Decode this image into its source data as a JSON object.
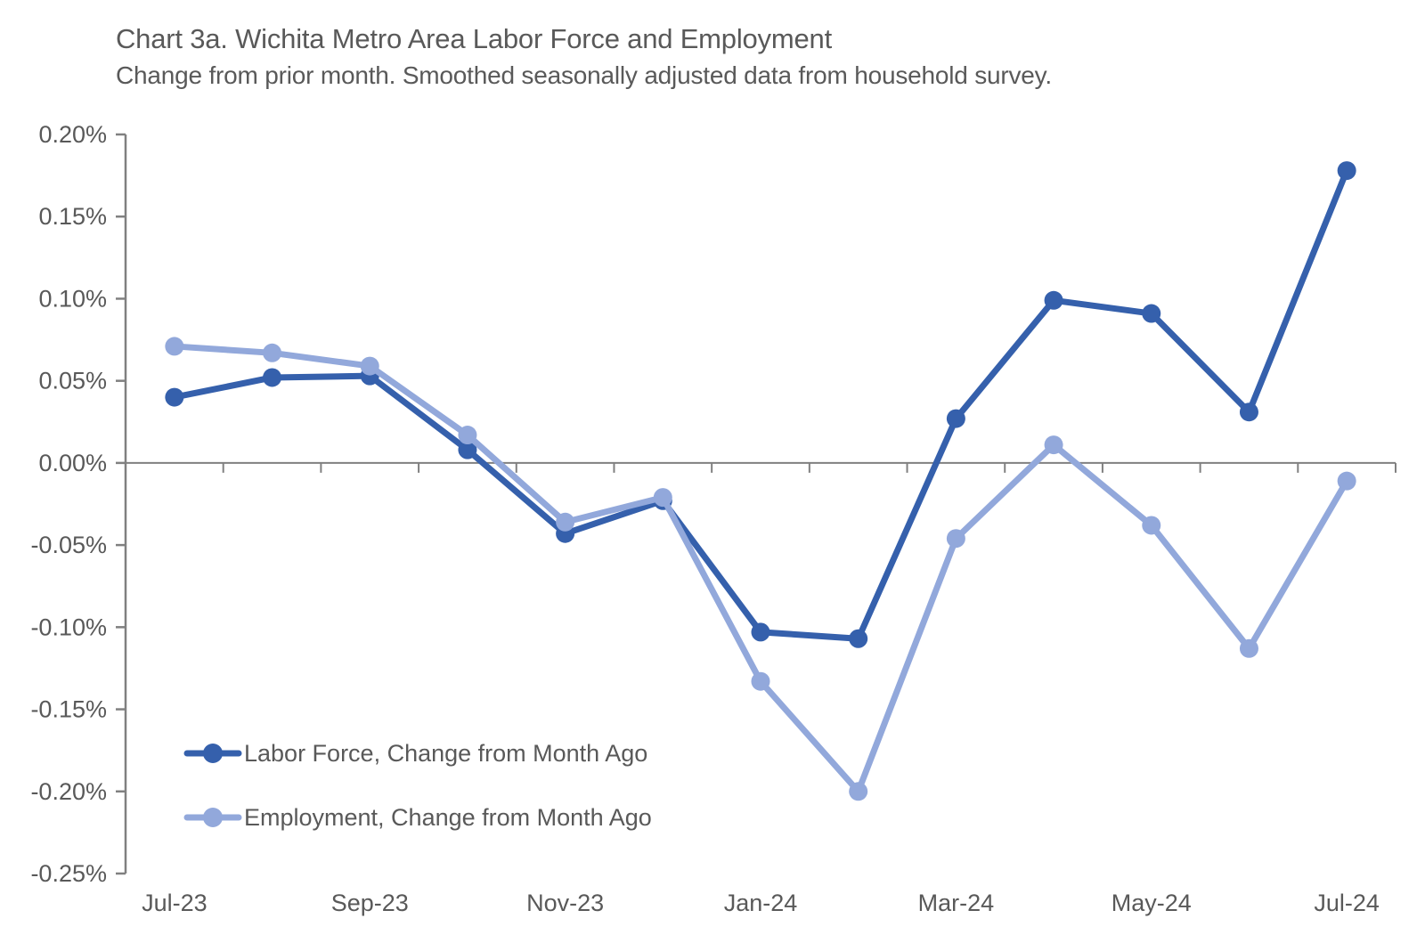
{
  "title": "Chart 3a. Wichita Metro Area Labor Force and Employment",
  "subtitle": "Change from prior month. Smoothed seasonally adjusted data from household survey.",
  "colors": {
    "labor_force": "#3560AC",
    "employment": "#92A8DB",
    "text": "#595959",
    "axis": "#808080"
  },
  "chart_data": {
    "type": "line",
    "unit": "percent",
    "x": [
      "Jul-23",
      "Aug-23",
      "Sep-23",
      "Oct-23",
      "Nov-23",
      "Dec-23",
      "Jan-24",
      "Feb-24",
      "Mar-24",
      "Apr-24",
      "May-24",
      "Jun-24",
      "Jul-24"
    ],
    "x_tick_indices": [
      0,
      2,
      4,
      6,
      8,
      10,
      12
    ],
    "x_tick_labels": [
      "Jul-23",
      "Sep-23",
      "Nov-23",
      "Jan-24",
      "Mar-24",
      "May-24",
      "Jul-24"
    ],
    "series": [
      {
        "id": "labor-force",
        "name": "Labor Force, Change from Month Ago",
        "color": "#3560AC",
        "values": [
          0.04,
          0.052,
          0.053,
          0.008,
          -0.043,
          -0.023,
          -0.103,
          -0.107,
          0.027,
          0.099,
          0.091,
          0.031,
          0.178
        ]
      },
      {
        "id": "employment",
        "name": "Employment, Change from Month Ago",
        "color": "#92A8DB",
        "values": [
          0.071,
          0.067,
          0.059,
          0.017,
          -0.036,
          -0.021,
          -0.133,
          -0.2,
          -0.046,
          0.011,
          -0.038,
          -0.113,
          -0.011
        ]
      }
    ],
    "ylim": [
      -0.25,
      0.2
    ],
    "ytick_step": 0.05,
    "ytick_labels": [
      "0.20%",
      "0.15%",
      "0.10%",
      "0.05%",
      "0.00%",
      "-0.05%",
      "-0.10%",
      "-0.15%",
      "-0.20%",
      "-0.25%"
    ],
    "grid": false,
    "zero_line": true,
    "legend_position": "inside-bottom-left"
  },
  "legend": {
    "items": [
      {
        "label": "Labor Force, Change from Month Ago"
      },
      {
        "label": "Employment, Change from Month Ago"
      }
    ]
  }
}
